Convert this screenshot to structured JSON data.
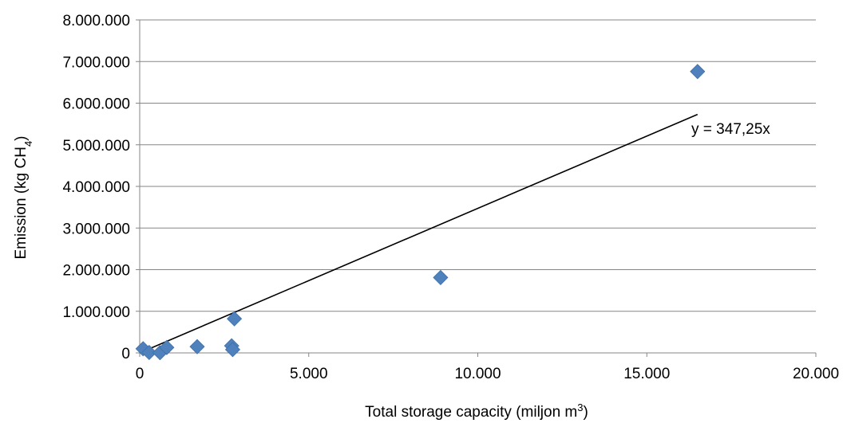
{
  "chart_data": {
    "type": "scatter",
    "xlabel": "Total storage capacity (miljon m³)",
    "xlabel_parts": {
      "text": "Total storage capacity (miljon m",
      "sup": "3",
      "end": ")"
    },
    "ylabel": "Emission (kg CH₄)",
    "ylabel_parts": {
      "text": "Emission (kg CH",
      "sub": "4",
      "end": ")"
    },
    "xlim": [
      0,
      20000
    ],
    "ylim": [
      0,
      8000000
    ],
    "x_ticks": [
      0,
      5000,
      10000,
      15000,
      20000
    ],
    "x_tick_labels": [
      "0",
      "5.000",
      "10.000",
      "15.000",
      "20.000"
    ],
    "y_ticks": [
      0,
      1000000,
      2000000,
      3000000,
      4000000,
      5000000,
      6000000,
      7000000,
      8000000
    ],
    "y_tick_labels": [
      "0",
      "1.000.000",
      "2.000.000",
      "3.000.000",
      "4.000.000",
      "5.000.000",
      "6.000.000",
      "7.000.000",
      "8.000.000"
    ],
    "grid": "horizontal",
    "series": [
      {
        "marker": "diamond",
        "color": "#4F81BD",
        "points": [
          {
            "x": 100,
            "y": 100000
          },
          {
            "x": 280,
            "y": 10000
          },
          {
            "x": 600,
            "y": 5000
          },
          {
            "x": 800,
            "y": 130000
          },
          {
            "x": 1700,
            "y": 150000
          },
          {
            "x": 2720,
            "y": 170000
          },
          {
            "x": 2750,
            "y": 80000
          },
          {
            "x": 2800,
            "y": 820000
          },
          {
            "x": 8900,
            "y": 1810000
          },
          {
            "x": 16500,
            "y": 6760000
          }
        ]
      }
    ],
    "trendline": {
      "slope": 347.25,
      "x_range": [
        0,
        16500
      ],
      "color": "#000000",
      "label": "y = 347,25x"
    }
  }
}
